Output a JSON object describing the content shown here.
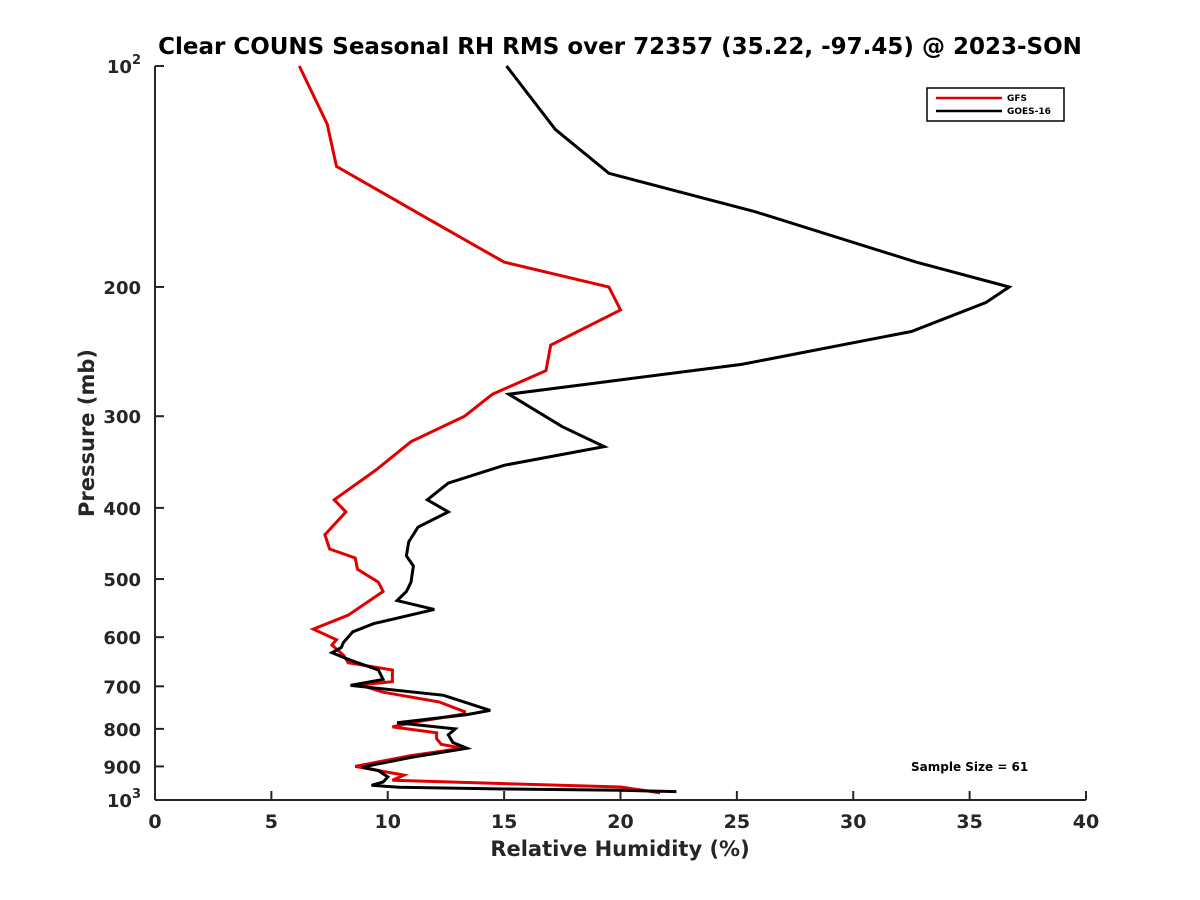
{
  "chart_data": {
    "type": "line",
    "title": "Clear COUNS Seasonal RH RMS over 72357 (35.22, -97.45) @ 2023-SON",
    "xlabel": "Relative Humidity (%)",
    "ylabel": "Pressure (mb)",
    "xlim": [
      0,
      40
    ],
    "ylim": [
      100,
      1000
    ],
    "yscale": "log",
    "yreversed": true,
    "grid": false,
    "legend_position": "top-right",
    "x_ticks": [
      0,
      5,
      10,
      15,
      20,
      25,
      30,
      35,
      40
    ],
    "x_tick_labels": [
      "0",
      "5",
      "10",
      "15",
      "20",
      "25",
      "30",
      "35",
      "40"
    ],
    "y_ticks": [
      {
        "value": 100,
        "base": "10",
        "exp": "2"
      },
      {
        "value": 200,
        "label": "200"
      },
      {
        "value": 300,
        "label": "300"
      },
      {
        "value": 400,
        "label": "400"
      },
      {
        "value": 500,
        "label": "500"
      },
      {
        "value": 600,
        "label": "600"
      },
      {
        "value": 700,
        "label": "700"
      },
      {
        "value": 800,
        "label": "800"
      },
      {
        "value": 900,
        "label": "900"
      },
      {
        "value": 1000,
        "base": "10",
        "exp": "3"
      }
    ],
    "annotation": "Sample Size = 61",
    "series": [
      {
        "name": "GFS",
        "color": "#e00000",
        "points": [
          [
            6.2,
            100
          ],
          [
            7.4,
            120
          ],
          [
            7.8,
            137
          ],
          [
            11.5,
            160
          ],
          [
            15.0,
            185
          ],
          [
            19.5,
            200
          ],
          [
            20.0,
            215
          ],
          [
            17.0,
            240
          ],
          [
            16.8,
            260
          ],
          [
            14.5,
            280
          ],
          [
            13.3,
            300
          ],
          [
            11.0,
            325
          ],
          [
            9.5,
            355
          ],
          [
            7.7,
            390
          ],
          [
            8.2,
            405
          ],
          [
            7.3,
            435
          ],
          [
            7.5,
            455
          ],
          [
            8.6,
            468
          ],
          [
            8.7,
            485
          ],
          [
            9.6,
            505
          ],
          [
            9.8,
            520
          ],
          [
            8.3,
            560
          ],
          [
            6.8,
            585
          ],
          [
            7.8,
            605
          ],
          [
            7.6,
            615
          ],
          [
            8.1,
            635
          ],
          [
            8.3,
            650
          ],
          [
            10.2,
            665
          ],
          [
            10.2,
            690
          ],
          [
            8.8,
            697
          ],
          [
            9.8,
            713
          ],
          [
            12.2,
            735
          ],
          [
            13.3,
            758
          ],
          [
            13.3,
            763
          ],
          [
            11.0,
            785
          ],
          [
            10.2,
            795
          ],
          [
            12.1,
            810
          ],
          [
            12.1,
            825
          ],
          [
            12.3,
            840
          ],
          [
            13.2,
            850
          ],
          [
            11.0,
            870
          ],
          [
            9.0,
            895
          ],
          [
            8.6,
            900
          ],
          [
            10.7,
            925
          ],
          [
            10.2,
            940
          ],
          [
            20.0,
            960
          ],
          [
            21.7,
            978
          ]
        ]
      },
      {
        "name": "GOES-16",
        "color": "#000000",
        "points": [
          [
            15.1,
            100
          ],
          [
            17.2,
            122
          ],
          [
            19.5,
            140
          ],
          [
            25.8,
            158
          ],
          [
            32.7,
            185
          ],
          [
            36.7,
            200
          ],
          [
            35.7,
            210
          ],
          [
            32.5,
            230
          ],
          [
            25.2,
            255
          ],
          [
            15.2,
            280
          ],
          [
            17.5,
            310
          ],
          [
            19.3,
            330
          ],
          [
            15.0,
            350
          ],
          [
            12.6,
            370
          ],
          [
            11.7,
            390
          ],
          [
            12.6,
            405
          ],
          [
            11.3,
            425
          ],
          [
            10.9,
            445
          ],
          [
            10.8,
            465
          ],
          [
            11.1,
            480
          ],
          [
            11.0,
            505
          ],
          [
            10.8,
            520
          ],
          [
            10.4,
            535
          ],
          [
            12.0,
            550
          ],
          [
            9.4,
            575
          ],
          [
            8.5,
            590
          ],
          [
            8.1,
            610
          ],
          [
            8.0,
            620
          ],
          [
            7.6,
            630
          ],
          [
            8.4,
            645
          ],
          [
            9.6,
            665
          ],
          [
            9.8,
            685
          ],
          [
            8.4,
            698
          ],
          [
            12.4,
            720
          ],
          [
            14.4,
            755
          ],
          [
            13.4,
            765
          ],
          [
            10.4,
            785
          ],
          [
            12.9,
            800
          ],
          [
            12.6,
            815
          ],
          [
            12.8,
            835
          ],
          [
            13.4,
            850
          ],
          [
            11.0,
            875
          ],
          [
            8.9,
            902
          ],
          [
            9.6,
            912
          ],
          [
            10.0,
            930
          ],
          [
            9.8,
            945
          ],
          [
            9.3,
            955
          ],
          [
            10.5,
            961
          ],
          [
            15.0,
            966
          ],
          [
            20.0,
            970
          ],
          [
            22.4,
            974
          ]
        ]
      }
    ]
  }
}
